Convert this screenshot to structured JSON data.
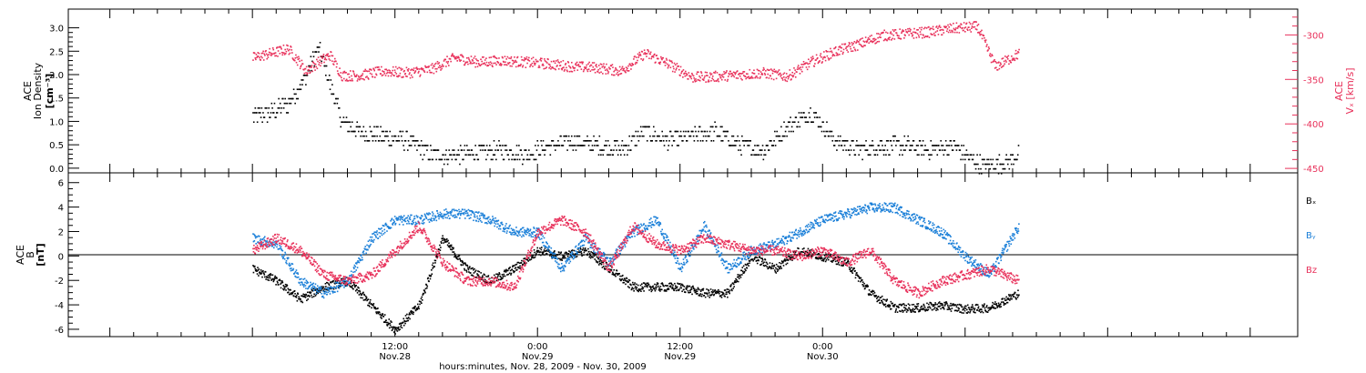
{
  "colors": {
    "black": "#000000",
    "red": "#e8305a",
    "blue": "#1a7fd8"
  },
  "chart_data": [
    {
      "type": "scatter",
      "panel": "top",
      "ylabel_left": [
        "ACE",
        "Ion Density",
        "[cm⁻³]"
      ],
      "ylabel_right": [
        "ACE",
        "Vₓ [km/s]"
      ],
      "ylim_left": [
        -0.1,
        3.4
      ],
      "yticks_left": [
        "0.0",
        "0.5",
        "1.0",
        "1.5",
        "2.0",
        "2.5",
        "3.0"
      ],
      "ylim_right": [
        -455,
        -271
      ],
      "yticks_right": [
        "-300",
        "-350",
        "-400",
        "-450"
      ],
      "grid": false,
      "series": [
        {
          "axis": "left",
          "color": "#000000",
          "x": [
            0,
            1.5,
            3,
            4.5,
            5.5,
            6.5,
            7.5,
            9,
            11,
            13,
            15,
            17,
            19,
            21,
            23,
            25,
            27,
            29,
            31,
            33,
            35,
            37,
            39,
            41,
            43,
            45,
            47,
            49,
            51,
            53,
            55,
            57,
            59,
            61,
            63,
            64.5
          ],
          "values": [
            1.1,
            1.2,
            1.4,
            2.0,
            2.6,
            1.8,
            1.0,
            0.8,
            0.7,
            0.6,
            0.3,
            0.3,
            0.35,
            0.4,
            0.3,
            0.5,
            0.6,
            0.5,
            0.4,
            0.8,
            0.6,
            0.7,
            0.8,
            0.5,
            0.4,
            0.9,
            1.2,
            0.6,
            0.4,
            0.5,
            0.5,
            0.4,
            0.5,
            0.1,
            0.1,
            0.3
          ]
        },
        {
          "axis": "right",
          "color": "#e8305a",
          "x": [
            0,
            1.5,
            3,
            4.5,
            5.5,
            6.5,
            7.5,
            9,
            11,
            13,
            15,
            17,
            19,
            21,
            23,
            25,
            27,
            29,
            31,
            33,
            35,
            37,
            39,
            41,
            43,
            45,
            47,
            49,
            51,
            53,
            55,
            57,
            59,
            61,
            62.5,
            64.5
          ],
          "values": [
            -325,
            -320,
            -315,
            -340,
            -330,
            -322,
            -345,
            -345,
            -340,
            -342,
            -338,
            -325,
            -330,
            -328,
            -330,
            -332,
            -335,
            -336,
            -340,
            -320,
            -332,
            -347,
            -346,
            -344,
            -342,
            -346,
            -330,
            -318,
            -310,
            -300,
            -298,
            -296,
            -292,
            -290,
            -335,
            -320
          ]
        }
      ]
    },
    {
      "type": "scatter",
      "panel": "bottom",
      "ylabel_left": [
        "ACE",
        "B",
        "[nT]"
      ],
      "ylim_left": [
        -6.6,
        6.8
      ],
      "yticks_left": [
        "6",
        "4",
        "2",
        "0",
        "-2",
        "-4",
        "-6"
      ],
      "zero_line": true,
      "legend_position": "right",
      "legend": [
        {
          "label": "Bₓ",
          "color": "#000000"
        },
        {
          "label": "Bᵧ",
          "color": "#1a7fd8"
        },
        {
          "label": "Bz",
          "color": "#e8305a"
        }
      ],
      "series": [
        {
          "name": "Bx",
          "color": "#000000",
          "x": [
            0,
            2,
            4,
            6,
            8,
            10,
            12,
            14,
            16,
            18,
            20,
            22,
            24,
            26,
            28,
            30,
            32,
            34,
            36,
            38,
            40,
            42,
            44,
            46,
            48,
            50,
            52,
            54,
            56,
            58,
            60,
            62,
            64.5
          ],
          "values": [
            -1.0,
            -2.0,
            -3.5,
            -2.5,
            -2.0,
            -4.0,
            -6.0,
            -4.0,
            1.5,
            -1.0,
            -2.0,
            -1.0,
            0.5,
            0.0,
            0.5,
            -1.0,
            -2.5,
            -2.5,
            -2.5,
            -3.0,
            -3.0,
            0.0,
            -1.0,
            0.5,
            0.0,
            -0.5,
            -3.0,
            -4.2,
            -4.2,
            -4.0,
            -4.3,
            -4.2,
            -3.0
          ]
        },
        {
          "name": "By",
          "color": "#1a7fd8",
          "x": [
            0,
            2,
            4,
            6,
            8,
            10,
            12,
            14,
            16,
            18,
            20,
            22,
            24,
            26,
            28,
            30,
            32,
            34,
            36,
            38,
            40,
            42,
            44,
            46,
            48,
            50,
            52,
            54,
            56,
            58,
            60,
            62,
            64.5
          ],
          "values": [
            1.5,
            1.0,
            -2.0,
            -3.0,
            -2.0,
            1.5,
            3.0,
            3.0,
            3.5,
            3.5,
            3.0,
            2.0,
            2.0,
            -1.0,
            1.5,
            -0.5,
            2.0,
            3.0,
            -1.0,
            2.5,
            -1.0,
            0.5,
            1.0,
            2.0,
            3.0,
            3.5,
            4.0,
            4.0,
            3.0,
            2.0,
            0.0,
            -1.5,
            2.5
          ]
        },
        {
          "name": "Bz",
          "color": "#e8305a",
          "x": [
            0,
            2,
            4,
            6,
            8,
            10,
            12,
            14,
            16,
            18,
            20,
            22,
            24,
            26,
            28,
            30,
            32,
            34,
            36,
            38,
            40,
            42,
            44,
            46,
            48,
            50,
            52,
            54,
            56,
            58,
            60,
            62,
            64.5
          ],
          "values": [
            0.5,
            1.5,
            0.5,
            -1.5,
            -2.0,
            -1.5,
            0.5,
            2.5,
            -0.5,
            -2.0,
            -2.0,
            -2.5,
            2.0,
            3.0,
            2.0,
            -1.0,
            2.5,
            1.0,
            0.5,
            1.5,
            1.0,
            0.5,
            0.5,
            0.0,
            0.5,
            -0.5,
            0.5,
            -2.0,
            -3.0,
            -2.0,
            -1.5,
            -1.0,
            -2.0
          ]
        }
      ]
    }
  ],
  "x_axis": {
    "unit": "hours since Nov.28 00:00",
    "range": [
      -15.5,
      88
    ],
    "ticks": [
      {
        "x": 12,
        "time": "12:00",
        "date": "Nov.28"
      },
      {
        "x": 24,
        "time": "0:00",
        "date": "Nov.29"
      },
      {
        "x": 36,
        "time": "12:00",
        "date": "Nov.29"
      },
      {
        "x": 48,
        "time": "0:00",
        "date": "Nov.30"
      }
    ],
    "label": "hours:minutes, Nov. 28, 2009 - Nov. 30, 2009"
  }
}
